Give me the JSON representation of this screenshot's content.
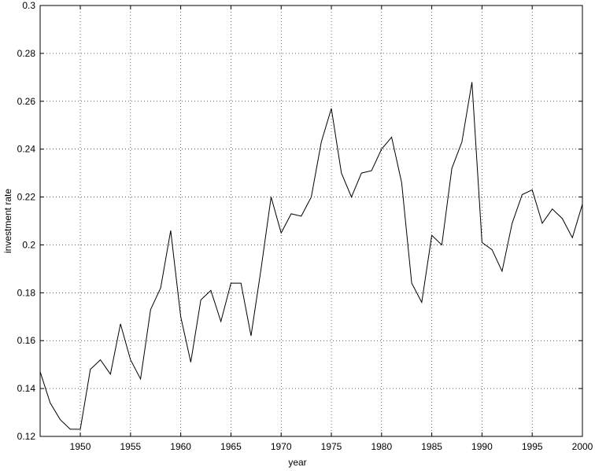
{
  "chart_data": {
    "type": "line",
    "x_label": "year",
    "y_label": "investment rate",
    "x": [
      1946,
      1947,
      1948,
      1949,
      1950,
      1951,
      1952,
      1953,
      1954,
      1955,
      1956,
      1957,
      1958,
      1959,
      1960,
      1961,
      1962,
      1963,
      1964,
      1965,
      1966,
      1967,
      1968,
      1969,
      1970,
      1971,
      1972,
      1973,
      1974,
      1975,
      1976,
      1977,
      1978,
      1979,
      1980,
      1981,
      1982,
      1983,
      1984,
      1985,
      1986,
      1987,
      1988,
      1989,
      1990,
      1991,
      1992,
      1993,
      1994,
      1995,
      1996,
      1997,
      1998,
      1999,
      2000
    ],
    "series": [
      {
        "color": "#000000",
        "values": [
          0.147,
          0.134,
          0.127,
          0.123,
          0.123,
          0.148,
          0.152,
          0.146,
          0.167,
          0.152,
          0.144,
          0.173,
          0.182,
          0.206,
          0.17,
          0.151,
          0.177,
          0.181,
          0.168,
          0.184,
          0.184,
          0.162,
          0.19,
          0.22,
          0.205,
          0.213,
          0.212,
          0.22,
          0.243,
          0.257,
          0.23,
          0.22,
          0.23,
          0.231,
          0.24,
          0.245,
          0.226,
          0.184,
          0.176,
          0.204,
          0.2,
          0.232,
          0.243,
          0.268,
          0.201,
          0.198,
          0.189,
          0.209,
          0.221,
          0.223,
          0.209,
          0.215,
          0.211,
          0.203,
          0.217
        ]
      }
    ],
    "xlim": [
      1946,
      2000
    ],
    "xticks": [
      1950,
      1955,
      1960,
      1965,
      1970,
      1975,
      1980,
      1985,
      1990,
      1995,
      2000
    ],
    "ylim": [
      0.12,
      0.3
    ],
    "yticks": [
      0.12,
      0.14,
      0.16,
      0.18,
      0.2,
      0.22,
      0.24,
      0.26,
      0.28,
      0.3
    ],
    "grid": true
  }
}
